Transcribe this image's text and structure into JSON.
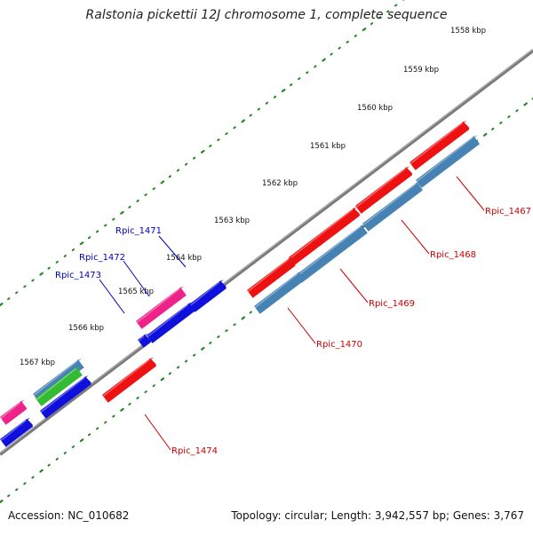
{
  "title": "Ralstonia pickettii 12J chromosome 1, complete sequence",
  "footer": {
    "accession": "Accession: NC_010682",
    "summary": "Topology: circular; Length: 3,942,557 bp; Genes: 3,767"
  },
  "ticks": [
    "1558 kbp",
    "1559 kbp",
    "1560 kbp",
    "1561 kbp",
    "1562 kbp",
    "1563 kbp",
    "1564 kbp",
    "1565 kbp",
    "1566 kbp",
    "1567 kbp"
  ],
  "gene_labels": {
    "blue": [
      "Rpic_1471",
      "Rpic_1472",
      "Rpic_1473"
    ],
    "red": [
      "Rpic_1467",
      "Rpic_1468",
      "Rpic_1469",
      "Rpic_1470",
      "Rpic_1474"
    ]
  },
  "colors": {
    "red_gene": "#ee1111",
    "blue_gene": "#1010dd",
    "steel_gene": "#4682b4",
    "pink_gene": "#ee2288",
    "green_gene": "#33bb33",
    "backbone": "#808080",
    "tick": "#228822",
    "red_label": "#cc0000",
    "blue_label": "#0000bb"
  }
}
